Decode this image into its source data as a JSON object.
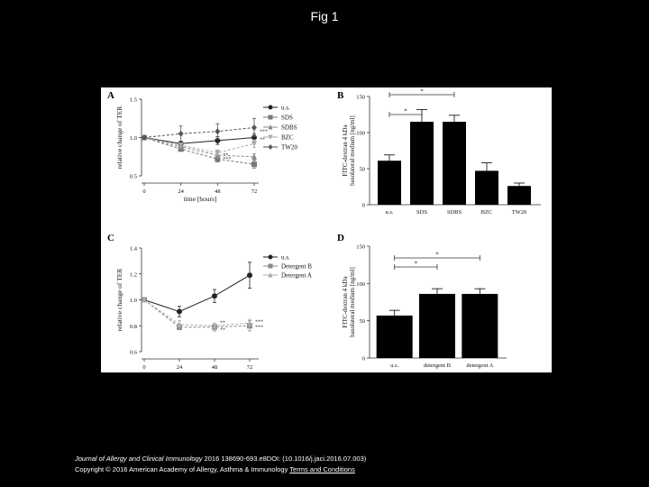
{
  "slide_title": "Fig 1",
  "footer": {
    "journal": "Journal of Allergy and Clinical Immunology",
    "citation": " 2016 138690-693.e8DOI: (10.1016/j.jaci.2016.07.003)",
    "copyright": "Copyright © 2016 American Academy of Allergy, Asthma & Immunology",
    "link": "Terms and Conditions"
  },
  "chart_data": [
    {
      "panel": "A",
      "type": "line",
      "ylabel": "relative change of TER",
      "xlabel": "time [hours]",
      "x": [
        0,
        24,
        48,
        72
      ],
      "xticks": [
        "0",
        "24",
        "48",
        "72"
      ],
      "yticks": [
        "0.5",
        "1.0",
        "1.5"
      ],
      "ylim": [
        0.5,
        1.5
      ],
      "legend": "top-right",
      "series": [
        {
          "name": "u.s.",
          "values": [
            1.0,
            0.92,
            0.96,
            1.0
          ],
          "err": [
            0.02,
            0.03,
            0.05,
            0.05
          ],
          "color": "#222222",
          "marker": "circle"
        },
        {
          "name": "SDS",
          "values": [
            1.0,
            0.85,
            0.72,
            0.65
          ],
          "err": [
            0.02,
            0.03,
            0.04,
            0.05
          ],
          "color": "#777777",
          "marker": "square"
        },
        {
          "name": "SDBS",
          "values": [
            1.0,
            0.88,
            0.77,
            0.75
          ],
          "err": [
            0.02,
            0.03,
            0.04,
            0.04
          ],
          "color": "#888888",
          "marker": "triangle"
        },
        {
          "name": "BZC",
          "values": [
            1.0,
            0.9,
            0.8,
            0.92
          ],
          "err": [
            0.02,
            0.03,
            0.04,
            0.05
          ],
          "color": "#aaaaaa",
          "marker": "triangle-down"
        },
        {
          "name": "TW20",
          "values": [
            1.0,
            1.05,
            1.08,
            1.13
          ],
          "err": [
            0.02,
            0.1,
            0.1,
            0.12
          ],
          "color": "#555555",
          "marker": "diamond"
        }
      ],
      "annotations": [
        "**",
        "***",
        "**",
        "***"
      ]
    },
    {
      "panel": "B",
      "type": "bar",
      "ylabel": "FITC-dextran 4 kDa basolateral medium [ng/ml]",
      "categories": [
        "u.s.",
        "SDS",
        "SDBS",
        "BZC",
        "TW20"
      ],
      "values": [
        61,
        115,
        115,
        47,
        26
      ],
      "err": [
        8,
        17,
        9,
        11,
        4
      ],
      "yticks": [
        "0",
        "50",
        "100",
        "150"
      ],
      "ylim": [
        0,
        150
      ],
      "annotations": [
        "*",
        "*"
      ]
    },
    {
      "panel": "C",
      "type": "line",
      "ylabel": "relative change of TER",
      "xlabel": "time [hours]",
      "x": [
        0,
        24,
        48,
        72
      ],
      "xticks": [
        "0",
        "24",
        "48",
        "72"
      ],
      "yticks": [
        "0.6",
        "0.8",
        "1.0",
        "1.2",
        "1.4"
      ],
      "ylim": [
        0.6,
        1.4
      ],
      "legend": "top-right",
      "series": [
        {
          "name": "u.s.",
          "values": [
            1.0,
            0.91,
            1.03,
            1.19
          ],
          "err": [
            0.01,
            0.04,
            0.05,
            0.1
          ],
          "color": "#222222",
          "marker": "circle"
        },
        {
          "name": "Detergent B",
          "values": [
            1.0,
            0.79,
            0.79,
            0.8
          ],
          "err": [
            0.01,
            0.02,
            0.03,
            0.04
          ],
          "color": "#888888",
          "marker": "square"
        },
        {
          "name": "Detergent A",
          "values": [
            1.0,
            0.81,
            0.8,
            0.82
          ],
          "err": [
            0.01,
            0.03,
            0.02,
            0.03
          ],
          "color": "#aaaaaa",
          "marker": "triangle"
        }
      ],
      "annotations": [
        "**",
        "**",
        "***",
        "***"
      ]
    },
    {
      "panel": "D",
      "type": "bar",
      "ylabel": "FITC-dextran 4 kDa basolateral medium [ng/ml]",
      "categories": [
        "u.s.",
        "detergent B",
        "detergent A"
      ],
      "values": [
        57,
        86,
        86
      ],
      "err": [
        7,
        7,
        7
      ],
      "yticks": [
        "0",
        "50",
        "100",
        "150"
      ],
      "ylim": [
        0,
        150
      ],
      "annotations": [
        "*",
        "*"
      ]
    }
  ]
}
